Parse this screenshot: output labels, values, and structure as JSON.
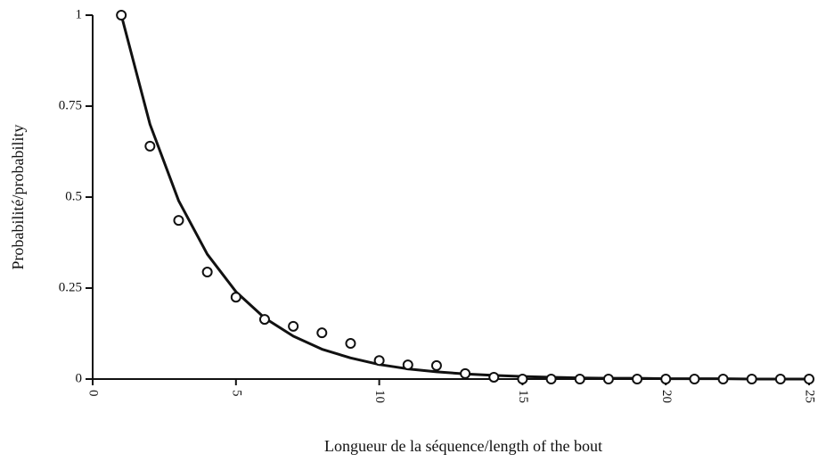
{
  "chart_data": {
    "type": "scatter",
    "xlabel": "Longueur de la séquence/length of the bout",
    "ylabel": "Probabilité/probability",
    "xlim": [
      0,
      25
    ],
    "xticks": [
      0,
      5,
      10,
      15,
      20,
      25
    ],
    "ylim": [
      0,
      1
    ],
    "yticks": [
      0,
      0.25,
      0.5,
      0.75,
      1
    ],
    "series": [
      {
        "style": "markers",
        "color": "#111111",
        "x": [
          1,
          2,
          3,
          4,
          5,
          6,
          7,
          8,
          9,
          10,
          11,
          12,
          13,
          14,
          15,
          16,
          17,
          18,
          19,
          20,
          21,
          22,
          23,
          24,
          25
        ],
        "values": [
          1,
          0.64,
          0.436,
          0.294,
          0.225,
          0.164,
          0.145,
          0.127,
          0.098,
          0.051,
          0.039,
          0.037,
          0.015,
          0.005,
          0,
          0,
          0,
          0,
          0,
          0,
          0,
          0,
          0,
          0,
          0
        ]
      },
      {
        "style": "line",
        "color": "#111111",
        "x": [
          1,
          2,
          3,
          4,
          5,
          6,
          7,
          8,
          9,
          10,
          11,
          12,
          13,
          14,
          15,
          16,
          17,
          18,
          19,
          20,
          21,
          22,
          23,
          24,
          25
        ],
        "values": [
          1,
          0.7,
          0.49,
          0.343,
          0.24,
          0.168,
          0.118,
          0.082,
          0.058,
          0.04,
          0.028,
          0.02,
          0.014,
          0.01,
          0.007,
          0.005,
          0.003,
          0.002,
          0.002,
          0.001,
          0.001,
          0.001,
          0,
          0,
          0
        ]
      }
    ]
  }
}
